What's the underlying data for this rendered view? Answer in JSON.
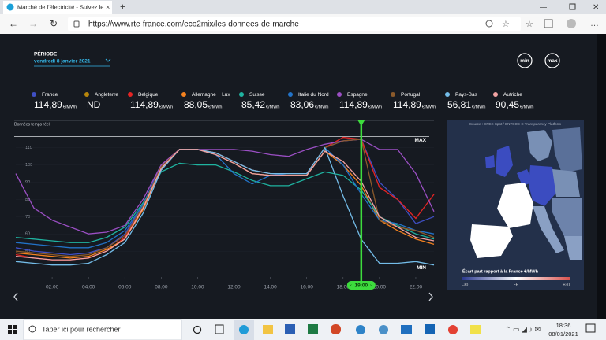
{
  "browser": {
    "tab_title": "Marché de l'électricité - Suivez le",
    "url": "https://www.rte-france.com/eco2mix/les-donnees-de-marche"
  },
  "period": {
    "label": "PÉRIODE",
    "date": "vendredi 8 janvier 2021"
  },
  "buttons": [
    "min",
    "max"
  ],
  "chart_data": {
    "type": "line",
    "subtitle": "Données temps réel",
    "unit": "€/MWh",
    "x": [
      0,
      1,
      2,
      3,
      4,
      5,
      6,
      7,
      8,
      9,
      10,
      11,
      12,
      13,
      14,
      15,
      16,
      17,
      18,
      19,
      20,
      21,
      22,
      23
    ],
    "xlim": [
      0,
      23
    ],
    "xticks": [
      {
        "value": 2,
        "label": "02:00"
      },
      {
        "value": 4,
        "label": "04:00"
      },
      {
        "value": 6,
        "label": "06:00"
      },
      {
        "value": 8,
        "label": "08:00"
      },
      {
        "value": 10,
        "label": "10:00"
      },
      {
        "value": 12,
        "label": "12:00"
      },
      {
        "value": 14,
        "label": "14:00"
      },
      {
        "value": 16,
        "label": "16:00"
      },
      {
        "value": 18,
        "label": "18:00"
      },
      {
        "value": 20,
        "label": "20:00"
      },
      {
        "value": 22,
        "label": "22:00"
      }
    ],
    "ylim": [
      35,
      119
    ],
    "yticks": [
      50,
      60,
      70,
      80,
      90,
      100,
      110
    ],
    "reference_lines": [
      {
        "label": "MAX",
        "value": 116.5
      },
      {
        "label": "MIN",
        "value": 38
      }
    ],
    "cursor": {
      "value": 19,
      "label": "19:00"
    },
    "series": [
      {
        "name": "France",
        "color": "#3f4fc4",
        "price_label": "114,89",
        "values": [
          52,
          50,
          49,
          48,
          49,
          52,
          60,
          77,
          100,
          109,
          109,
          107,
          102,
          97,
          95,
          95,
          95,
          110,
          114,
          114.89,
          90,
          80,
          66,
          70
        ]
      },
      {
        "name": "Angleterre",
        "color": "#b8860b",
        "price_label": "ND",
        "values": [
          null,
          null,
          null,
          null,
          null,
          null,
          null,
          null,
          null,
          null,
          null,
          null,
          null,
          null,
          null,
          null,
          null,
          null,
          null,
          null,
          null,
          null,
          null,
          null
        ]
      },
      {
        "name": "Belgique",
        "color": "#e52424",
        "price_label": "114,89",
        "values": [
          48,
          46,
          45,
          45,
          46,
          50,
          58,
          75,
          100,
          109,
          109,
          107,
          102,
          97,
          95,
          95,
          95,
          110,
          116,
          114.89,
          87,
          80,
          69,
          83
        ]
      },
      {
        "name": "Allemagne + Lux",
        "color": "#f5821f",
        "price_label": "88,05",
        "values": [
          49,
          48,
          47,
          46,
          47,
          51,
          57,
          74,
          98,
          109,
          109,
          106,
          101,
          95,
          94,
          94,
          94,
          108,
          100,
          88.05,
          68,
          62,
          57,
          54
        ]
      },
      {
        "name": "Suisse",
        "color": "#1fb3a0",
        "price_label": "85,42",
        "values": [
          58,
          57,
          56,
          55,
          55,
          58,
          64,
          78,
          96,
          101,
          100,
          100,
          96,
          91,
          88,
          88,
          92,
          96,
          94,
          85.42,
          70,
          65,
          60,
          57
        ]
      },
      {
        "name": "Italie du Nord",
        "color": "#2273c8",
        "price_label": "83,06",
        "values": [
          55,
          54,
          53,
          52,
          52,
          55,
          62,
          77,
          99,
          109,
          109,
          106,
          95,
          89,
          94,
          95,
          95,
          110,
          100,
          83.06,
          68,
          66,
          62,
          60
        ]
      },
      {
        "name": "Espagne",
        "color": "#9b4fc4",
        "price_label": "114,89",
        "values": [
          95,
          75,
          68,
          64,
          60,
          61,
          65,
          80,
          100,
          109,
          109,
          109,
          109,
          108,
          106,
          105,
          109,
          112,
          114,
          114.89,
          109,
          109,
          95,
          73
        ]
      },
      {
        "name": "Portugal",
        "color": "#8b5a2b",
        "price_label": "114,89",
        "values": [
          50,
          49,
          48,
          47,
          48,
          52,
          59,
          76,
          99,
          109,
          109,
          107,
          102,
          97,
          95,
          95,
          95,
          110,
          114,
          114.89,
          68,
          64,
          62,
          58
        ]
      },
      {
        "name": "Pays-Bas",
        "color": "#74bde9",
        "price_label": "56,81",
        "values": [
          44,
          43,
          42,
          42,
          43,
          48,
          55,
          72,
          97,
          109,
          109,
          107,
          102,
          97,
          95,
          95,
          95,
          110,
          82,
          56.81,
          43,
          43,
          44,
          42
        ]
      },
      {
        "name": "Autriche",
        "color": "#f2a3a3",
        "price_label": "90,45",
        "values": [
          47,
          46,
          45,
          45,
          46,
          50,
          57,
          75,
          98,
          109,
          109,
          106,
          101,
          95,
          94,
          94,
          94,
          108,
          102,
          90.45,
          70,
          64,
          58,
          56
        ]
      }
    ]
  },
  "map": {
    "source": "Source : EPEX Spot / ENTSOE-E Transparency Platform",
    "legend_title": "Écart part rapport à la France €/MWh",
    "scale_labels": [
      "-30",
      "FR",
      "+30"
    ]
  },
  "taskbar": {
    "search": "Taper ici pour rechercher",
    "time": "18:36",
    "date": "08/01/2021"
  }
}
